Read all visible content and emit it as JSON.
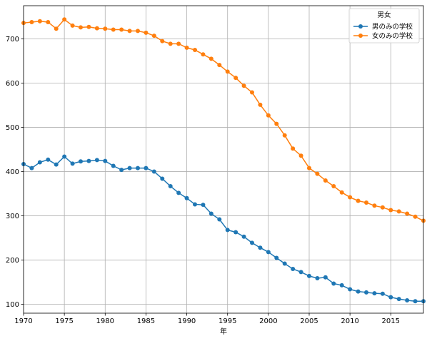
{
  "chart_data": {
    "type": "line",
    "xlabel": "年",
    "ylabel": "",
    "xlim": [
      1970,
      2019
    ],
    "ylim": [
      80,
      775
    ],
    "xticks": [
      1970,
      1975,
      1980,
      1985,
      1990,
      1995,
      2000,
      2005,
      2010,
      2015
    ],
    "yticks": [
      100,
      200,
      300,
      400,
      500,
      600,
      700
    ],
    "grid": true,
    "legend_title": "男女",
    "legend_placement": "top-right",
    "x": [
      1970,
      1971,
      1972,
      1973,
      1974,
      1975,
      1976,
      1977,
      1978,
      1979,
      1980,
      1981,
      1982,
      1983,
      1984,
      1985,
      1986,
      1987,
      1988,
      1989,
      1990,
      1991,
      1992,
      1993,
      1994,
      1995,
      1996,
      1997,
      1998,
      1999,
      2000,
      2001,
      2002,
      2003,
      2004,
      2005,
      2006,
      2007,
      2008,
      2009,
      2010,
      2011,
      2012,
      2013,
      2014,
      2015,
      2016,
      2017,
      2018,
      2019
    ],
    "series": [
      {
        "name": "男のみの学校",
        "color": "#1f77b4",
        "values": [
          417,
          408,
          421,
          427,
          416,
          434,
          418,
          423,
          424,
          426,
          424,
          413,
          404,
          408,
          408,
          408,
          400,
          384,
          367,
          352,
          340,
          326,
          325,
          305,
          292,
          268,
          263,
          253,
          239,
          228,
          218,
          205,
          192,
          180,
          173,
          164,
          159,
          161,
          147,
          143,
          134,
          129,
          127,
          125,
          124,
          116,
          112,
          109,
          107,
          107
        ]
      },
      {
        "name": "女のみの学校",
        "color": "#ff7f0e",
        "values": [
          736,
          738,
          740,
          738,
          723,
          744,
          730,
          726,
          727,
          724,
          723,
          721,
          721,
          718,
          718,
          714,
          707,
          695,
          689,
          689,
          680,
          675,
          665,
          655,
          641,
          626,
          612,
          594,
          579,
          551,
          527,
          508,
          482,
          452,
          436,
          408,
          395,
          380,
          367,
          353,
          342,
          334,
          330,
          323,
          319,
          313,
          310,
          305,
          298,
          289
        ]
      }
    ]
  }
}
